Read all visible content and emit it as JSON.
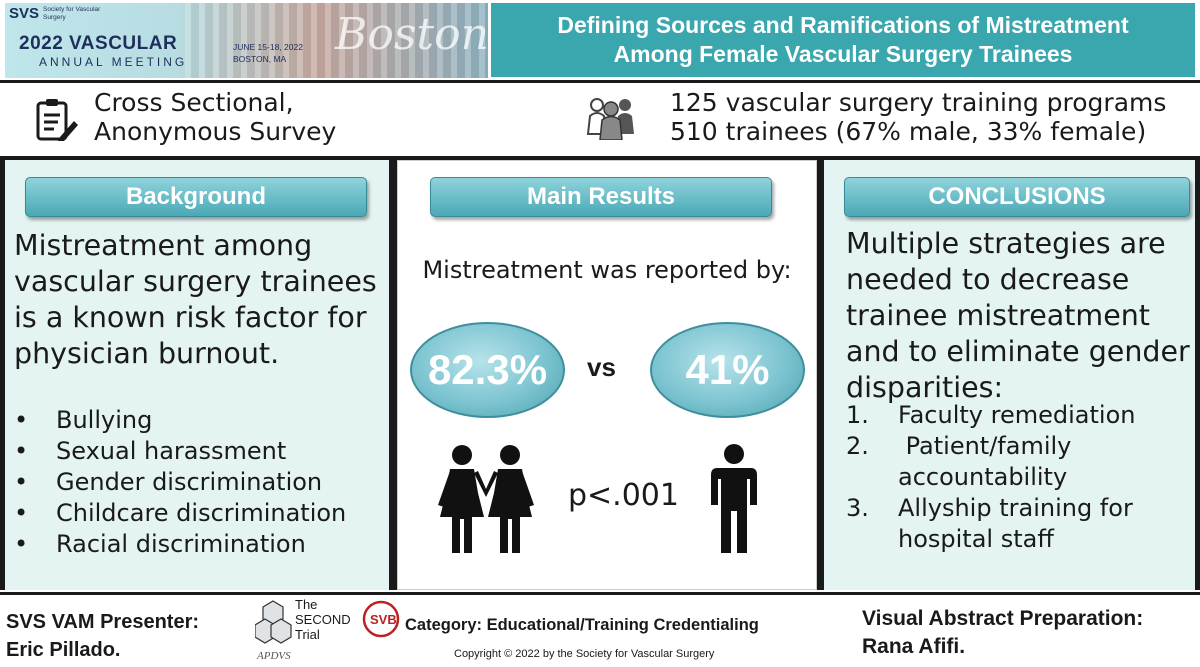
{
  "header": {
    "svs_logo": "SVS",
    "svs_logo_sub": "Society for Vascular Surgery",
    "meeting_title": "2022 VASCULAR",
    "meeting_subtitle": "ANNUAL MEETING",
    "meeting_dates": "JUNE 15-18, 2022",
    "meeting_location": "BOSTON, MA",
    "script_city": "Boston",
    "title_line1": "Defining Sources and Ramifications of Mistreatment",
    "title_line2": "Among Female Vascular Surgery Trainees"
  },
  "study": {
    "design_line1": "Cross Sectional,",
    "design_line2": "Anonymous Survey",
    "programs": "125 vascular surgery training programs",
    "trainees": "510 trainees (67% male, 33% female)"
  },
  "background": {
    "heading": "Background",
    "text": "Mistreatment among vascular surgery trainees is a known risk factor for physician burnout.",
    "bullet_char": "•",
    "bullets": [
      "Bullying",
      "Sexual harassment",
      "Gender discrimination",
      "Childcare discrimination",
      "Racial discrimination"
    ]
  },
  "results": {
    "heading": "Main Results",
    "label": "Mistreatment was reported by:",
    "female_value": "82.3%",
    "vs": "vs",
    "male_value": "41%",
    "p_value": "p<.001"
  },
  "conclusions": {
    "heading": "CONCLUSIONS",
    "text": "Multiple strategies are needed to decrease trainee mistreatment and to eliminate gender disparities:",
    "items": [
      {
        "num": "1.",
        "text": "Faculty remediation"
      },
      {
        "num": "2.",
        "text": " Patient/family accountability"
      },
      {
        "num": "3.",
        "text": "Allyship training for hospital staff"
      }
    ]
  },
  "footer": {
    "presenter_label": "SVS VAM Presenter:",
    "presenter_name": "Eric Pillado.",
    "logo_text_line1": "The",
    "logo_text_line2": "SECOND",
    "logo_text_line3": "Trial",
    "logo_apds": "APDVS",
    "logo_svb": "SVB",
    "category": "Category: Educational/Training Credentialing",
    "copyright": "Copyright © 2022 by the Society for Vascular Surgery",
    "prep_label": "Visual Abstract Preparation:",
    "prep_name": "Rana Afifi."
  },
  "colors": {
    "accent": "#3aa6ad",
    "panel_bg": "#e4f4f2",
    "pill_top": "#8fd3dc",
    "pill_bottom": "#4aa9b6"
  },
  "icons": [
    "clipboard-icon",
    "people-group-icon",
    "women-icon",
    "man-icon",
    "second-trial-logo",
    "svb-logo"
  ]
}
